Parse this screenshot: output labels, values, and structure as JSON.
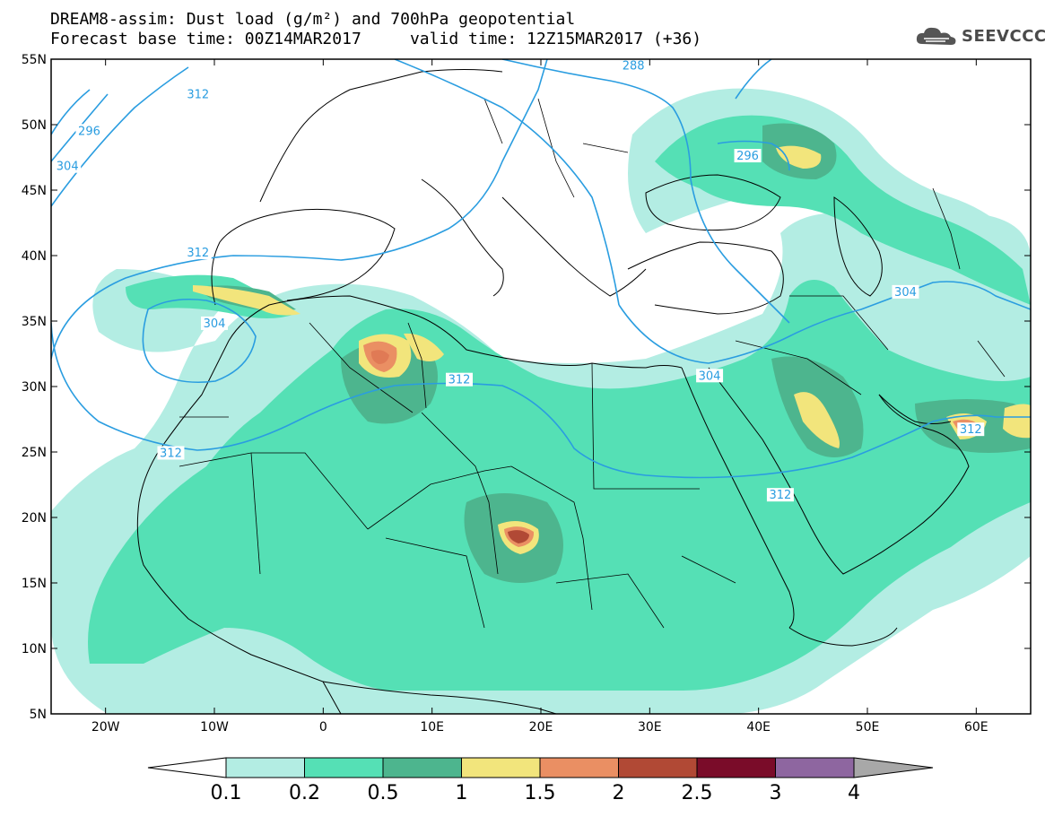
{
  "header": {
    "line1": "DREAM8-assim: Dust load (g/m²) and 700hPa geopotential",
    "line2": "Forecast base time: 00Z14MAR2017     valid time: 12Z15MAR2017 (+36)",
    "logo_text": "SEEVCCC",
    "logo_icon": "cloud-logo-icon"
  },
  "map": {
    "lon_range": [
      -25,
      65
    ],
    "lat_range": [
      5,
      55
    ],
    "lat_ticks": [
      {
        "value": 55,
        "label": "55N"
      },
      {
        "value": 50,
        "label": "50N"
      },
      {
        "value": 45,
        "label": "45N"
      },
      {
        "value": 40,
        "label": "40N"
      },
      {
        "value": 35,
        "label": "35N"
      },
      {
        "value": 30,
        "label": "30N"
      },
      {
        "value": 25,
        "label": "25N"
      },
      {
        "value": 20,
        "label": "20N"
      },
      {
        "value": 15,
        "label": "15N"
      },
      {
        "value": 10,
        "label": "10N"
      },
      {
        "value": 5,
        "label": "5N"
      }
    ],
    "lon_ticks": [
      {
        "value": -20,
        "label": "20W"
      },
      {
        "value": -10,
        "label": "10W"
      },
      {
        "value": 0,
        "label": "0"
      },
      {
        "value": 10,
        "label": "10E"
      },
      {
        "value": 20,
        "label": "20E"
      },
      {
        "value": 30,
        "label": "30E"
      },
      {
        "value": 40,
        "label": "40E"
      },
      {
        "value": 50,
        "label": "50E"
      },
      {
        "value": 60,
        "label": "60E"
      }
    ],
    "contour_color": "#2a9de0",
    "contour_labels": [
      {
        "text": "312",
        "lon": -11.5,
        "lat": 52.3
      },
      {
        "text": "296",
        "lon": -21.5,
        "lat": 49.5
      },
      {
        "text": "304",
        "lon": -23.5,
        "lat": 46.8
      },
      {
        "text": "288",
        "lon": 28.5,
        "lat": 54.5
      },
      {
        "text": "296",
        "lon": 39,
        "lat": 47.6
      },
      {
        "text": "312",
        "lon": -11.5,
        "lat": 40.2
      },
      {
        "text": "304",
        "lon": -10,
        "lat": 34.8
      },
      {
        "text": "312",
        "lon": 12.5,
        "lat": 30.5
      },
      {
        "text": "312",
        "lon": -14,
        "lat": 24.9
      },
      {
        "text": "304",
        "lon": 35.5,
        "lat": 30.8
      },
      {
        "text": "304",
        "lon": 53.5,
        "lat": 37.2
      },
      {
        "text": "312",
        "lon": 42,
        "lat": 21.7
      },
      {
        "text": "312",
        "lon": 59.5,
        "lat": 26.7
      }
    ]
  },
  "colorbar": {
    "colors": [
      "#b3ede3",
      "#55e0b5",
      "#4db58e",
      "#f2e57c",
      "#ea8f63",
      "#b14935",
      "#7a0c29",
      "#8e66a0"
    ],
    "end_left": "#ffffff",
    "end_right": "#a8a8a8",
    "labels": [
      "0.1",
      "0.2",
      "0.5",
      "1",
      "1.5",
      "2",
      "2.5",
      "3",
      "4"
    ]
  }
}
